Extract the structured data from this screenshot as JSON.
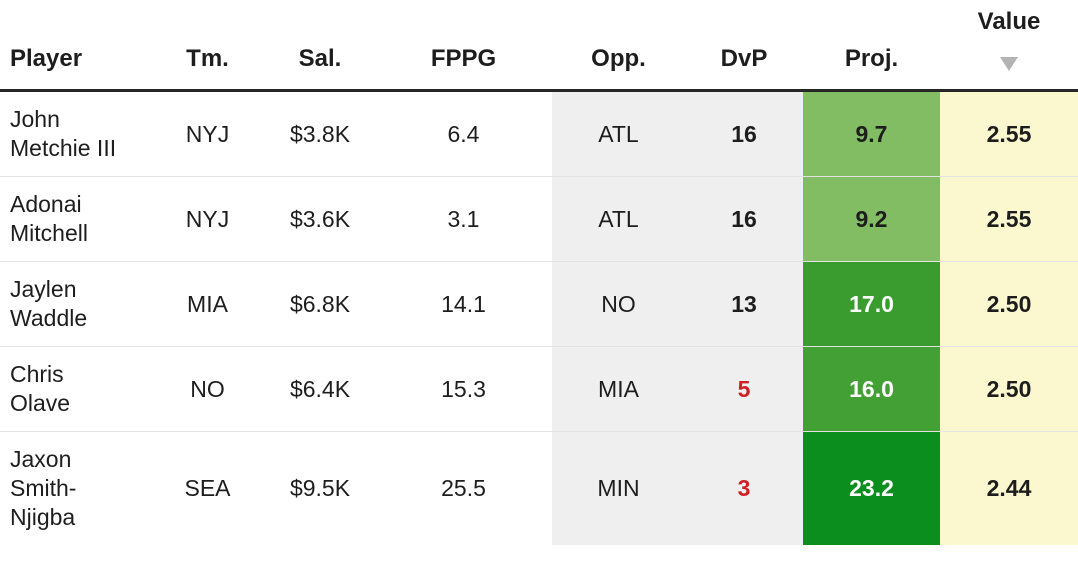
{
  "colors": {
    "default_text": "#1d1d1d",
    "header_border": "#262626",
    "row_divider": "#e3e3e3",
    "muted_column_bg": "#efefef",
    "value_column_bg": "#fbf8d0",
    "negative_dvp_text": "#cc2127",
    "sort_icon": "#b3b3b3",
    "proj_scale": [
      "#82bc63",
      "#3a9b2e",
      "#43a034",
      "#0b8e1e"
    ]
  },
  "table": {
    "columns": [
      {
        "key": "player",
        "label": "Player"
      },
      {
        "key": "team",
        "label": "Tm."
      },
      {
        "key": "salary",
        "label": "Sal."
      },
      {
        "key": "fppg",
        "label": "FPPG"
      },
      {
        "key": "opp",
        "label": "Opp."
      },
      {
        "key": "dvp",
        "label": "DvP"
      },
      {
        "key": "proj",
        "label": "Proj."
      },
      {
        "key": "value",
        "label": "Value"
      }
    ],
    "sort": {
      "column": "value",
      "direction": "desc"
    },
    "rows": [
      {
        "player": "John Metchie III",
        "team": "NYJ",
        "salary": "$3.8K",
        "fppg": "6.4",
        "opp": "ATL",
        "dvp": "16",
        "dvp_color": "#1d1d1d",
        "proj": "9.7",
        "proj_bg": "#82bc63",
        "proj_text": "#1d1d1d",
        "value": "2.55"
      },
      {
        "player": "Adonai Mitchell",
        "team": "NYJ",
        "salary": "$3.6K",
        "fppg": "3.1",
        "opp": "ATL",
        "dvp": "16",
        "dvp_color": "#1d1d1d",
        "proj": "9.2",
        "proj_bg": "#82bc63",
        "proj_text": "#1d1d1d",
        "value": "2.55"
      },
      {
        "player": "Jaylen Waddle",
        "team": "MIA",
        "salary": "$6.8K",
        "fppg": "14.1",
        "opp": "NO",
        "dvp": "13",
        "dvp_color": "#1d1d1d",
        "proj": "17.0",
        "proj_bg": "#3a9b2e",
        "proj_text": "#ffffff",
        "value": "2.50"
      },
      {
        "player": "Chris Olave",
        "team": "NO",
        "salary": "$6.4K",
        "fppg": "15.3",
        "opp": "MIA",
        "dvp": "5",
        "dvp_color": "#cc2127",
        "proj": "16.0",
        "proj_bg": "#43a034",
        "proj_text": "#ffffff",
        "value": "2.50"
      },
      {
        "player": "Jaxon Smith-Njigba",
        "team": "SEA",
        "salary": "$9.5K",
        "fppg": "25.5",
        "opp": "MIN",
        "dvp": "3",
        "dvp_color": "#cc2127",
        "proj": "23.2",
        "proj_bg": "#0b8e1e",
        "proj_text": "#ffffff",
        "value": "2.44"
      }
    ]
  }
}
